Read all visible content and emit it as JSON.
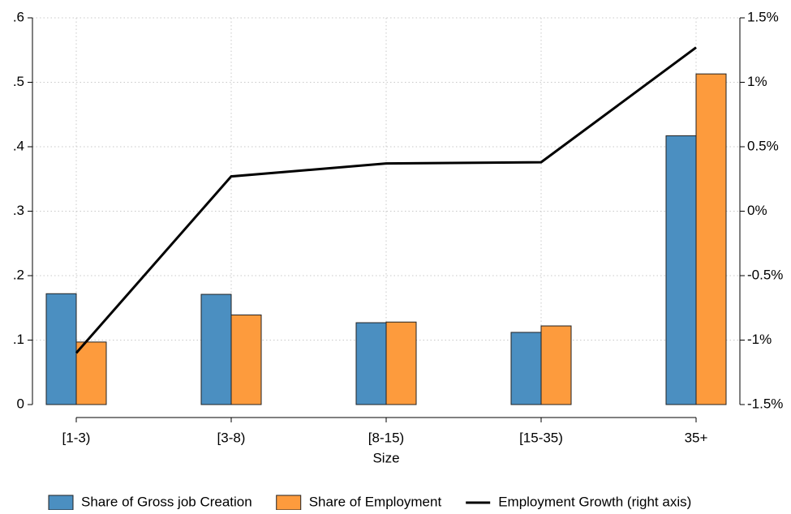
{
  "chart_data": {
    "type": "bar",
    "x_label": "Size",
    "categories": [
      "[1-3)",
      "[3-8)",
      "[8-15)",
      "[15-35)",
      "35+"
    ],
    "series": [
      {
        "name": "Share of Gross job Creation",
        "type": "bar",
        "color": "#4b8fc1",
        "values": [
          0.172,
          0.171,
          0.127,
          0.112,
          0.417
        ]
      },
      {
        "name": "Share of Employment",
        "type": "bar",
        "color": "#fd9b3d",
        "values": [
          0.097,
          0.139,
          0.128,
          0.122,
          0.513
        ]
      },
      {
        "name": "Employment Growth (right axis)",
        "type": "line",
        "axis": "y2",
        "color": "#000000",
        "values": [
          -1.1,
          0.27,
          0.37,
          0.38,
          1.27
        ]
      }
    ],
    "ylim": [
      0,
      0.6
    ],
    "yticks": [
      0,
      {
        "value": 0.1,
        "label": ".1"
      },
      {
        "value": 0.2,
        "label": ".2"
      },
      {
        "value": 0.3,
        "label": ".3"
      },
      {
        "value": 0.4,
        "label": ".4"
      },
      {
        "value": 0.5,
        "label": ".5"
      },
      {
        "value": 0.6,
        "label": ".6"
      }
    ],
    "y2lim": [
      -1.5,
      1.5
    ],
    "y2ticks": [
      {
        "value": -1.5,
        "label": "-1.5%"
      },
      {
        "value": -1,
        "label": "-1%"
      },
      {
        "value": -0.5,
        "label": "-0.5%"
      },
      {
        "value": 0,
        "label": "0%"
      },
      {
        "value": 0.5,
        "label": "0.5%"
      },
      {
        "value": 1,
        "label": "1%"
      },
      {
        "value": 1.5,
        "label": "1.5%"
      }
    ],
    "grid": true,
    "legend": "bottom"
  }
}
